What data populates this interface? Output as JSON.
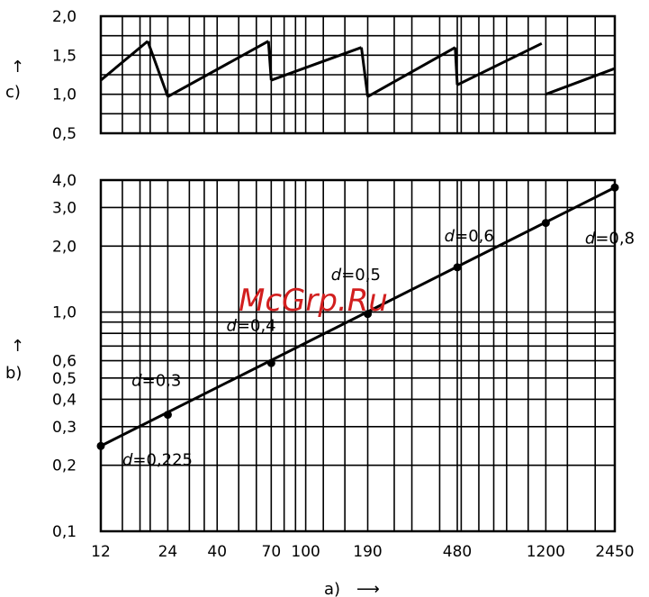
{
  "watermark": "McGrp.Ru",
  "chart_data": [
    {
      "id": "c",
      "type": "line",
      "panel_label": "c)",
      "arrow": "↑",
      "y_scale": "linear",
      "ylim": [
        0.5,
        2.0
      ],
      "y_ticks": [
        {
          "v": 2.0,
          "label": "2,0"
        },
        {
          "v": 1.5,
          "label": "1,5"
        },
        {
          "v": 1.0,
          "label": "1,0"
        },
        {
          "v": 0.5,
          "label": "0,5"
        }
      ],
      "y_grid": [
        0.5,
        0.75,
        1.0,
        1.25,
        1.5,
        1.75,
        2.0
      ],
      "segments": [
        [
          [
            12,
            1.18
          ],
          [
            19.5,
            1.68
          ]
        ],
        [
          [
            24,
            0.97
          ],
          [
            68,
            1.68
          ]
        ],
        [
          [
            70,
            1.18
          ],
          [
            178,
            1.6
          ]
        ],
        [
          [
            190,
            0.97
          ],
          [
            470,
            1.6
          ]
        ],
        [
          [
            480,
            1.12
          ],
          [
            1150,
            1.65
          ]
        ],
        [
          [
            1200,
            1.0
          ],
          [
            2450,
            1.33
          ]
        ]
      ],
      "jumps": [
        [
          [
            19.5,
            1.68
          ],
          [
            24,
            0.97
          ]
        ],
        [
          [
            68,
            1.68
          ],
          [
            70,
            1.18
          ]
        ],
        [
          [
            178,
            1.6
          ],
          [
            190,
            0.97
          ]
        ],
        [
          [
            470,
            1.6
          ],
          [
            480,
            1.12
          ]
        ]
      ]
    },
    {
      "id": "b",
      "type": "line",
      "panel_label": "b)",
      "arrow": "↑",
      "y_scale": "log",
      "x_scale": "log",
      "ylim": [
        0.1,
        4.0
      ],
      "xlim": [
        12,
        2450
      ],
      "y_ticks": [
        {
          "v": 4.0,
          "label": "4,0"
        },
        {
          "v": 3.0,
          "label": "3,0"
        },
        {
          "v": 2.0,
          "label": "2,0"
        },
        {
          "v": 1.0,
          "label": "1,0"
        },
        {
          "v": 0.6,
          "label": "0,6"
        },
        {
          "v": 0.5,
          "label": "0,5"
        },
        {
          "v": 0.4,
          "label": "0,4"
        },
        {
          "v": 0.3,
          "label": "0,3"
        },
        {
          "v": 0.2,
          "label": "0,2"
        },
        {
          "v": 0.1,
          "label": "0,1"
        }
      ],
      "y_grid": [
        0.1,
        0.2,
        0.3,
        0.4,
        0.5,
        0.6,
        0.7,
        0.8,
        0.9,
        1.0,
        2.0,
        3.0,
        4.0
      ],
      "x_ticks": [
        {
          "v": 12,
          "label": "12"
        },
        {
          "v": 24,
          "label": "24"
        },
        {
          "v": 40,
          "label": "40"
        },
        {
          "v": 70,
          "label": "70"
        },
        {
          "v": 100,
          "label": "100"
        },
        {
          "v": 190,
          "label": "190"
        },
        {
          "v": 480,
          "label": "480"
        },
        {
          "v": 1200,
          "label": "1200"
        },
        {
          "v": 2450,
          "label": "2450"
        }
      ],
      "x_grid": [
        12,
        15,
        18,
        20,
        24,
        30,
        35,
        40,
        50,
        60,
        70,
        80,
        90,
        100,
        120,
        150,
        190,
        250,
        300,
        400,
        480,
        500,
        600,
        700,
        800,
        1000,
        1200,
        1500,
        2000,
        2450
      ],
      "xlabel": "a)",
      "x_arrow": "⟶",
      "line_points": [
        [
          12,
          0.245
        ],
        [
          2450,
          3.7
        ]
      ],
      "points": [
        {
          "x": 12,
          "y": 0.245
        },
        {
          "x": 24,
          "y": 0.34
        },
        {
          "x": 70,
          "y": 0.585
        },
        {
          "x": 190,
          "y": 0.98
        },
        {
          "x": 480,
          "y": 1.6
        },
        {
          "x": 1200,
          "y": 2.55
        },
        {
          "x": 2450,
          "y": 3.7
        }
      ],
      "annotations": [
        {
          "d": "d",
          "eq": "=",
          "val": "0,225",
          "x": 15,
          "y": 0.2
        },
        {
          "d": "d",
          "eq": "=",
          "val": "0,3",
          "x": 16.5,
          "y": 0.46
        },
        {
          "d": "d",
          "eq": "=",
          "val": "0,4",
          "x": 44,
          "y": 0.82
        },
        {
          "d": "d",
          "eq": "=",
          "val": "0,5",
          "x": 130,
          "y": 1.4
        },
        {
          "d": "d",
          "eq": "=",
          "val": "0,6",
          "x": 420,
          "y": 2.1
        },
        {
          "d": "d",
          "eq": "=",
          "val": "0,8",
          "x": 1800,
          "y": 2.05
        }
      ]
    }
  ]
}
